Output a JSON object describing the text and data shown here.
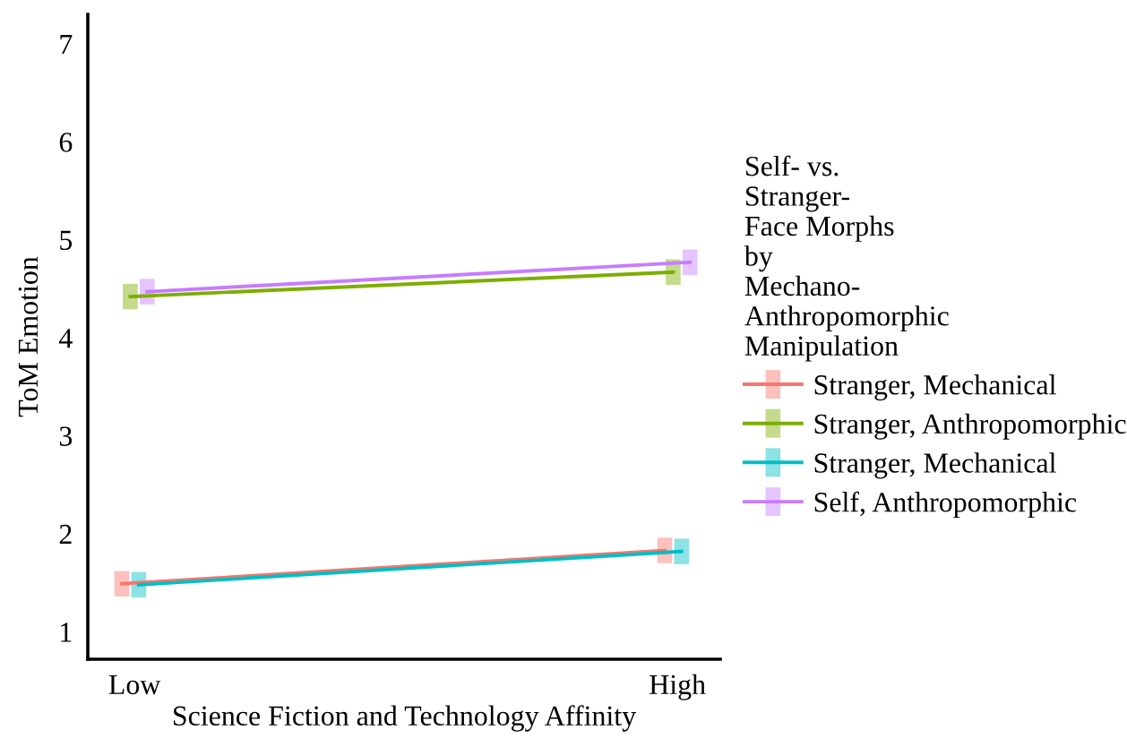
{
  "chart_data": {
    "type": "line",
    "xlabel": "Science Fiction and Technology Affinity",
    "ylabel": "ToM Emotion",
    "legend_title": "Self- vs.\nStranger-\nFace Morphs\nby\nMechano-\nAnthropomorphic\nManipulation",
    "categories": [
      "Low",
      "High"
    ],
    "series": [
      {
        "name": "Stranger, Mechanical",
        "color": "#f8766d",
        "values": [
          1.49,
          1.83
        ],
        "errors": [
          0.13,
          0.13
        ]
      },
      {
        "name": "Stranger, Anthropomorphic",
        "color": "#7cae00",
        "values": [
          4.42,
          4.67
        ],
        "errors": [
          0.13,
          0.13
        ]
      },
      {
        "name": "Stranger, Mechanical",
        "color": "#00bfc4",
        "values": [
          1.48,
          1.82
        ],
        "errors": [
          0.13,
          0.13
        ]
      },
      {
        "name": "Self, Anthropomorphic",
        "color": "#c77cff",
        "values": [
          4.47,
          4.77
        ],
        "errors": [
          0.13,
          0.13
        ]
      }
    ],
    "ylim": [
      0.72,
      7.3
    ],
    "yticks": [
      1,
      2,
      3,
      4,
      5,
      6,
      7
    ],
    "grid": false,
    "legend": "right",
    "marker": "none",
    "line_style": "solid"
  }
}
